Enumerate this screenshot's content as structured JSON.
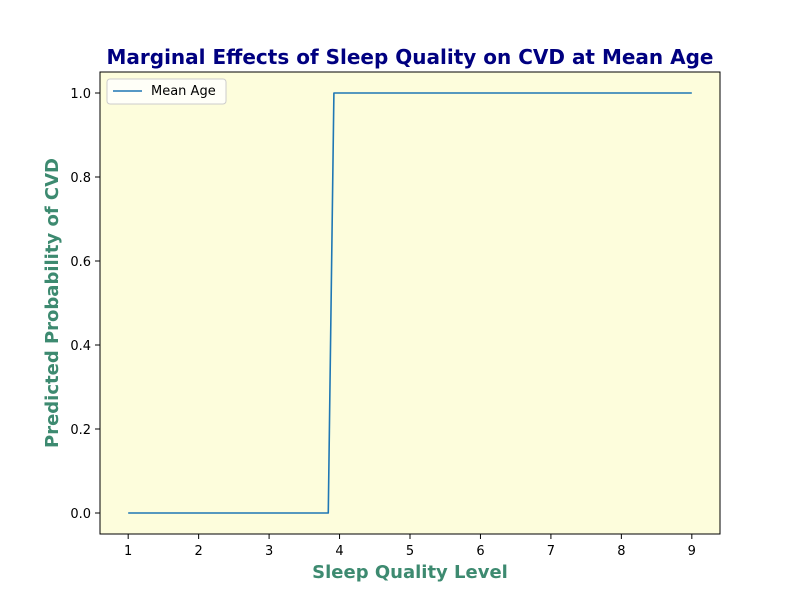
{
  "chart_data": {
    "type": "line",
    "title": "Marginal Effects of Sleep Quality on CVD at Mean Age",
    "xlabel": "Sleep Quality Level",
    "ylabel": "Predicted Probability of CVD",
    "xlim": [
      0.6,
      9.4
    ],
    "ylim": [
      -0.05,
      1.05
    ],
    "xticks": [
      1,
      2,
      3,
      4,
      5,
      6,
      7,
      8,
      9
    ],
    "yticks": [
      0.0,
      0.2,
      0.4,
      0.6,
      0.8,
      1.0
    ],
    "ytick_labels": [
      "0.0",
      "0.2",
      "0.4",
      "0.6",
      "0.8",
      "1.0"
    ],
    "grid": false,
    "legend_position": "top-left",
    "series": [
      {
        "name": "Mean Age",
        "color": "#1f77b4",
        "x": [
          1.0,
          1.5,
          2.0,
          2.5,
          3.0,
          3.5,
          3.84,
          3.92,
          4.5,
          5.0,
          6.0,
          7.0,
          8.0,
          9.0
        ],
        "y": [
          0.0,
          0.0,
          0.0,
          0.0,
          0.0,
          0.0,
          0.0,
          1.0,
          1.0,
          1.0,
          1.0,
          1.0,
          1.0,
          1.0
        ]
      }
    ]
  },
  "style": {
    "plot_background": "#fdfddc",
    "title_color": "#000080",
    "axis_label_color": "#3d8a70",
    "line_color": "#1f77b4"
  }
}
